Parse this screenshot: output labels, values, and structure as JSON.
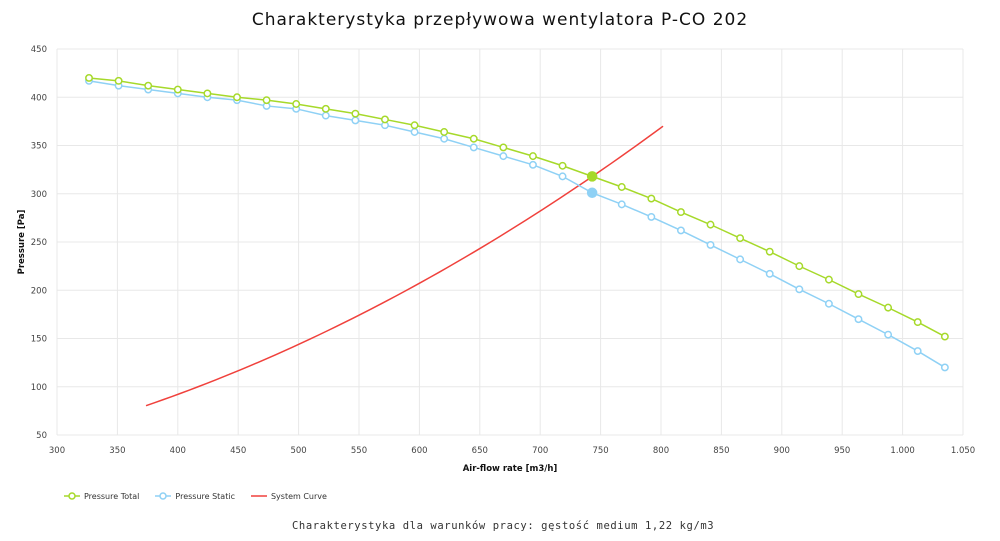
{
  "chart_data": {
    "type": "line",
    "title": "Charakterystyka przepływowa wentylatora P-CO 202",
    "subtitle": "Charakterystyka dla warunków pracy: gęstość medium 1,22 kg/m3",
    "xlabel": "Air-flow rate [m3/h]",
    "ylabel": "Pressure [Pa]",
    "xlim": [
      300,
      1050
    ],
    "ylim": [
      50,
      450
    ],
    "xticks": [
      300,
      350,
      400,
      450,
      500,
      550,
      600,
      650,
      700,
      750,
      800,
      850,
      900,
      950,
      1000,
      1050
    ],
    "xtick_labels": [
      "300",
      "350",
      "400",
      "450",
      "500",
      "550",
      "600",
      "650",
      "700",
      "750",
      "800",
      "850",
      "900",
      "950",
      "1.000",
      "1.050"
    ],
    "yticks": [
      50,
      100,
      150,
      200,
      250,
      300,
      350,
      400,
      450
    ],
    "ytick_labels": [
      "50",
      "100",
      "150",
      "200",
      "250",
      "300",
      "350",
      "400",
      "450"
    ],
    "grid": true,
    "legend_position": "bottom-left",
    "x": [
      326.5,
      351,
      375.5,
      400,
      424.5,
      449,
      473.5,
      498,
      522.5,
      547,
      571.5,
      596,
      620.5,
      645,
      669.5,
      694,
      718.5,
      743,
      767.5,
      792,
      816.5,
      841,
      865.5,
      890,
      914.5,
      939,
      963.5,
      988,
      1012.5,
      1035
    ],
    "series": [
      {
        "name": "Pressure Total",
        "color": "#a6d92a",
        "marker": "circle",
        "values": [
          420,
          417,
          412,
          408,
          404,
          400,
          397,
          393,
          388,
          383,
          377,
          371,
          364,
          357,
          348,
          339,
          329,
          318,
          307,
          295,
          281,
          268,
          254,
          240,
          225,
          211,
          196,
          182,
          167,
          152
        ],
        "operating_point_index": 17
      },
      {
        "name": "Pressure Static",
        "color": "#8fd1f5",
        "marker": "circle",
        "values": [
          417,
          412,
          408,
          404,
          400,
          397,
          391,
          388,
          381,
          376,
          371,
          364,
          357,
          348,
          339,
          330,
          318,
          301,
          289,
          276,
          262,
          247,
          232,
          217,
          201,
          186,
          170,
          154,
          137,
          120
        ],
        "operating_point_index": 17
      },
      {
        "name": "System Curve",
        "color": "#f0413c",
        "marker": "none",
        "x": [
          373.7,
          400,
          450,
          500,
          550,
          600,
          650,
          700,
          743,
          801.7
        ],
        "values": [
          80.4,
          92.1,
          116.6,
          144.0,
          174.2,
          207.4,
          243.3,
          282.2,
          318.0,
          370.0
        ]
      }
    ],
    "operating_point": {
      "x": 743,
      "total": 318,
      "static": 301
    }
  }
}
